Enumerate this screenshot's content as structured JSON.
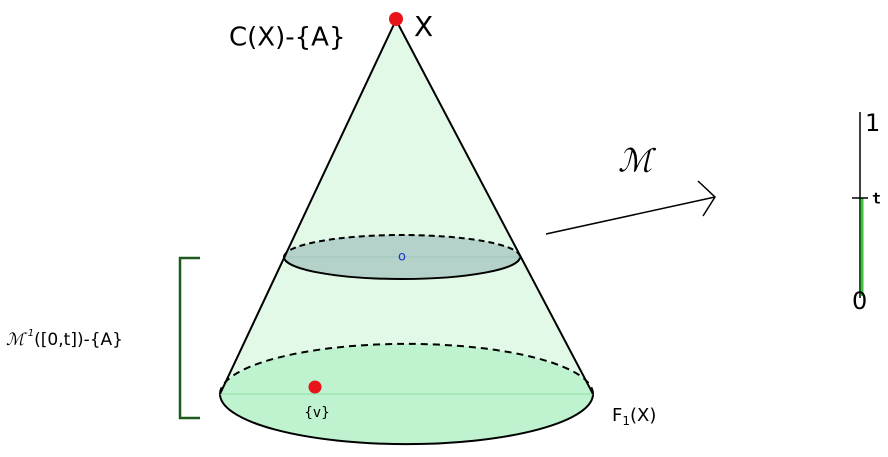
{
  "labels": {
    "apex": "C(X)-{A}",
    "apex_point": "X",
    "map": "ℳ",
    "interval_top": "1",
    "interval_mid": "t",
    "interval_bottom": "0",
    "preimage": {
      "base": "ℳ",
      "sup": "-1",
      "rest": "([0,t])-{A}"
    },
    "center": "o",
    "vertex": "{v}",
    "fiber": {
      "base": "F",
      "sub": "1",
      "rest": "(X)"
    }
  }
}
